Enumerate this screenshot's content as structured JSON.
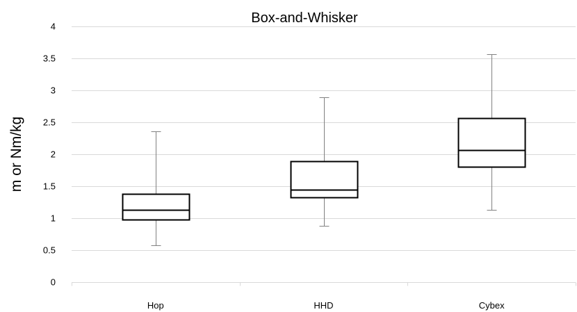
{
  "chart_data": {
    "type": "boxplot",
    "title": "Box-and-Whisker",
    "xlabel": "",
    "ylabel": "m or Nm/kg",
    "ylim": [
      0,
      4
    ],
    "yticks": [
      0,
      0.5,
      1,
      1.5,
      2,
      2.5,
      3,
      3.5,
      4
    ],
    "ytick_labels": [
      "0",
      "0.5",
      "1",
      "1.5",
      "2",
      "2.5",
      "3",
      "3.5",
      "4"
    ],
    "grid": "horizontal",
    "categories": [
      "Hop",
      "HHD",
      "Cybex"
    ],
    "boxes": [
      {
        "category": "Hop",
        "min": 0.58,
        "q1": 0.98,
        "median": 1.13,
        "q3": 1.38,
        "max": 2.36
      },
      {
        "category": "HHD",
        "min": 0.88,
        "q1": 1.33,
        "median": 1.45,
        "q3": 1.89,
        "max": 2.89
      },
      {
        "category": "Cybex",
        "min": 1.13,
        "q1": 1.8,
        "median": 2.07,
        "q3": 2.57,
        "max": 3.56
      }
    ],
    "colors": {
      "box_stroke": "#000000",
      "box_fill": "#ffffff",
      "whisker": "#808080",
      "grid": "#d9d9d9",
      "axis": "#d9d9d9"
    }
  }
}
